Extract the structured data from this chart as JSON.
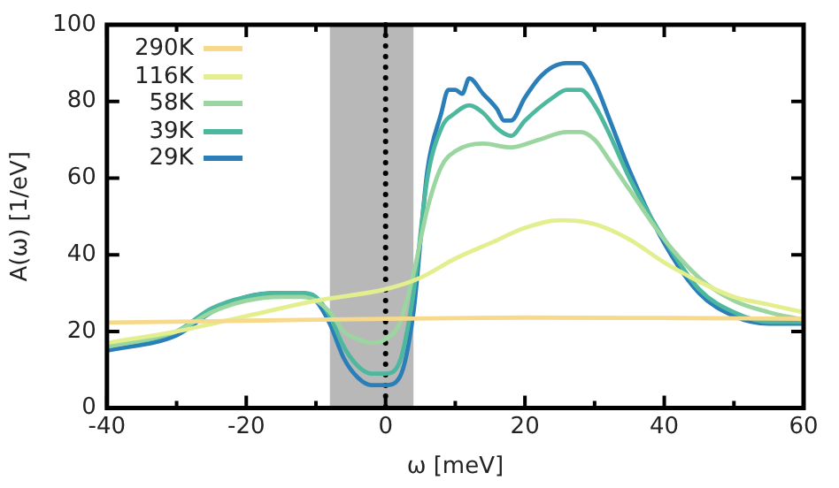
{
  "chart_data": {
    "type": "line",
    "xlabel": "ω [meV]",
    "ylabel": "A(ω) [1/eV]",
    "xlim": [
      -40,
      60
    ],
    "ylim": [
      0,
      100
    ],
    "xticks": [
      -40,
      {
        "value": -30,
        "label": null
      },
      -20,
      {
        "value": -10,
        "label": null
      },
      0,
      {
        "value": 10,
        "label": null
      },
      20,
      {
        "value": 30,
        "label": null
      },
      40,
      {
        "value": 50,
        "label": null
      },
      60
    ],
    "yticks": [
      0,
      20,
      40,
      60,
      80,
      100
    ],
    "grid": false,
    "legend": "top left",
    "marker": "none",
    "line_style": "solid",
    "ref_lines": [
      {
        "axis": "x",
        "value": 0,
        "color": "#000000",
        "line_style": "dotted"
      }
    ],
    "bands": [
      {
        "axis": "x",
        "from": -8,
        "to": 4,
        "color": "#b8b8b8"
      }
    ],
    "series": [
      {
        "name": "290K",
        "color": "#f7d98b",
        "x": [
          -40,
          -20,
          0,
          20,
          40,
          60
        ],
        "values": [
          22.3,
          22.8,
          23.3,
          23.6,
          23.5,
          23.3
        ]
      },
      {
        "name": "116K",
        "color": "#e3ef8f",
        "x": [
          -40,
          -30,
          -20,
          -10,
          0,
          5,
          10,
          15,
          20,
          25,
          30,
          35,
          40,
          45,
          50,
          55,
          60
        ],
        "values": [
          17,
          20,
          24,
          28,
          31,
          34,
          39,
          43,
          47,
          49,
          48,
          44,
          38,
          33,
          29,
          27,
          25
        ]
      },
      {
        "name": "58K",
        "color": "#9bd6a1",
        "x": [
          -40,
          -30,
          -25,
          -20,
          -15,
          -12,
          -10,
          -8,
          -6,
          -4,
          -2,
          0,
          2,
          4,
          6,
          8,
          10,
          14,
          18,
          22,
          26,
          28,
          30,
          32,
          35,
          40,
          45,
          50,
          55,
          60
        ],
        "values": [
          16,
          20,
          25,
          28,
          29,
          29,
          28,
          25,
          20,
          18,
          17,
          18,
          22,
          35,
          52,
          63,
          67,
          69,
          68,
          70,
          72,
          72,
          70,
          65,
          57,
          44,
          34,
          28,
          25,
          23
        ]
      },
      {
        "name": "39K",
        "color": "#4db89e",
        "x": [
          -40,
          -30,
          -25,
          -20,
          -15,
          -12,
          -10,
          -8,
          -6,
          -4,
          -2,
          0,
          2,
          4,
          6,
          8,
          10,
          12,
          14,
          16,
          18,
          20,
          24,
          26,
          28,
          30,
          32,
          35,
          40,
          45,
          50,
          55,
          60
        ],
        "values": [
          16,
          20,
          26,
          29,
          30,
          30,
          29,
          24,
          16,
          11,
          9,
          9,
          12,
          30,
          60,
          73,
          77,
          79,
          77,
          73,
          71,
          75,
          81,
          83,
          83,
          79,
          72,
          60,
          44,
          31,
          25,
          22.5,
          22.5
        ]
      },
      {
        "name": "29K",
        "color": "#2b7fb8",
        "x": [
          -40,
          -30,
          -25,
          -20,
          -15,
          -12,
          -10,
          -8,
          -6,
          -4,
          -2,
          0,
          2,
          4,
          6,
          8,
          9,
          10,
          11,
          12,
          14,
          16,
          17,
          18,
          20,
          22,
          24,
          26,
          28,
          30,
          32,
          35,
          40,
          45,
          50,
          55,
          60
        ],
        "values": [
          15,
          19,
          25,
          29,
          30,
          30,
          28,
          22,
          13,
          8,
          6,
          6,
          8,
          25,
          62,
          77,
          83,
          83,
          82,
          86,
          82,
          78,
          75,
          75,
          81,
          86,
          89,
          90,
          90,
          85,
          76,
          62,
          43,
          30,
          24,
          22,
          22
        ]
      }
    ]
  }
}
